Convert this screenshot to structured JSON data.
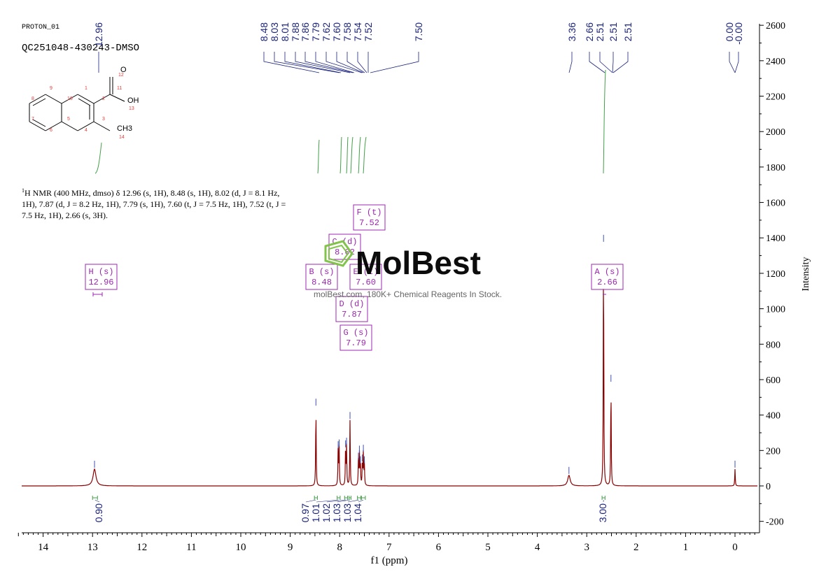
{
  "header": {
    "experiment": "PROTON_01",
    "sample": "QC251048-430243-DMSO"
  },
  "summary": {
    "nucleus_mass": "1",
    "text": "H NMR (400 MHz, dmso) δ 12.96 (s, 1H), 8.48 (s, 1H), 8.02 (d, J = 8.1 Hz, 1H), 7.87 (d, J = 8.2 Hz, 1H), 7.79 (s, 1H), 7.60 (t, J = 7.5 Hz, 1H), 7.52 (t, J = 7.5 Hz, 1H), 2.66 (s, 3H)."
  },
  "molecule": {
    "atoms": [
      "O",
      "OH",
      "CH3"
    ],
    "numbers": [
      "1",
      "2",
      "3",
      "4",
      "5",
      "6",
      "7",
      "8",
      "9",
      "10",
      "11",
      "12",
      "13",
      "14"
    ]
  },
  "peak_labels": [
    "12.96",
    "8.48",
    "8.03",
    "8.01",
    "7.88",
    "7.86",
    "7.79",
    "7.62",
    "7.60",
    "7.58",
    "7.54",
    "7.52",
    "7.50",
    "3.36",
    "2.66",
    "2.51",
    "2.51",
    "2.51",
    "0.00",
    "-0.00"
  ],
  "multiplets": [
    {
      "letter": "H",
      "mult": "s",
      "shift": "12.96"
    },
    {
      "letter": "B",
      "mult": "s",
      "shift": "8.48"
    },
    {
      "letter": "C",
      "mult": "d",
      "shift": "8.02"
    },
    {
      "letter": "F",
      "mult": "t",
      "shift": "7.52"
    },
    {
      "letter": "E",
      "mult": "t",
      "shift": "7.60"
    },
    {
      "letter": "D",
      "mult": "d",
      "shift": "7.87"
    },
    {
      "letter": "G",
      "mult": "s",
      "shift": "7.79"
    },
    {
      "letter": "A",
      "mult": "s",
      "shift": "2.66"
    }
  ],
  "integrals": [
    "0.90",
    "0.97",
    "1.01",
    "1.02",
    "1.03",
    "1.03",
    "1.04",
    "3.00"
  ],
  "watermark": {
    "brand": "MolBest",
    "tagline": "molBest.com, 180K+ Chemical Reagents In Stock."
  },
  "colors": {
    "spectrum": "#8b0000",
    "peak_label": "#1a237e",
    "integral": "#2e7d32",
    "multiplet": "#9c27b0",
    "watermark": "#7cc242"
  },
  "chart_data": {
    "type": "line",
    "title": "",
    "xlabel": "f1 (ppm)",
    "ylabel": "Intensity",
    "xlim": [
      14.5,
      -0.5
    ],
    "ylim": [
      -250,
      2600
    ],
    "x_ticks": [
      "14",
      "13",
      "12",
      "11",
      "10",
      "9",
      "8",
      "7",
      "6",
      "5",
      "4",
      "3",
      "2",
      "1",
      "0"
    ],
    "y_ticks": [
      "2600",
      "2400",
      "2200",
      "2000",
      "1800",
      "1600",
      "1400",
      "1200",
      "1000",
      "800",
      "600",
      "400",
      "200",
      "0",
      "-200"
    ],
    "series": [
      {
        "peaks": [
          {
            "ppm": 12.96,
            "intensity": 95
          },
          {
            "ppm": 8.48,
            "intensity": 445
          },
          {
            "ppm": 8.03,
            "intensity": 205
          },
          {
            "ppm": 8.01,
            "intensity": 215
          },
          {
            "ppm": 7.88,
            "intensity": 210
          },
          {
            "ppm": 7.86,
            "intensity": 225
          },
          {
            "ppm": 7.79,
            "intensity": 370
          },
          {
            "ppm": 7.62,
            "intensity": 140
          },
          {
            "ppm": 7.6,
            "intensity": 180
          },
          {
            "ppm": 7.58,
            "intensity": 120
          },
          {
            "ppm": 7.54,
            "intensity": 130
          },
          {
            "ppm": 7.52,
            "intensity": 185
          },
          {
            "ppm": 7.5,
            "intensity": 120
          },
          {
            "ppm": 3.36,
            "intensity": 60
          },
          {
            "ppm": 2.66,
            "intensity": 1370
          },
          {
            "ppm": 2.51,
            "intensity": 580
          },
          {
            "ppm": 0.0,
            "intensity": 95
          }
        ]
      }
    ],
    "integral_ranges": [
      {
        "from": 13.0,
        "to": 12.9,
        "value": "0.90"
      },
      {
        "from": 8.51,
        "to": 8.45,
        "value": "0.97"
      },
      {
        "from": 8.05,
        "to": 7.99,
        "value": "1.01"
      },
      {
        "from": 7.9,
        "to": 7.84,
        "value": "1.02"
      },
      {
        "from": 7.81,
        "to": 7.77,
        "value": "1.03"
      },
      {
        "from": 7.64,
        "to": 7.57,
        "value": "1.03"
      },
      {
        "from": 7.56,
        "to": 7.48,
        "value": "1.04"
      },
      {
        "from": 2.69,
        "to": 2.63,
        "value": "3.00"
      }
    ]
  }
}
